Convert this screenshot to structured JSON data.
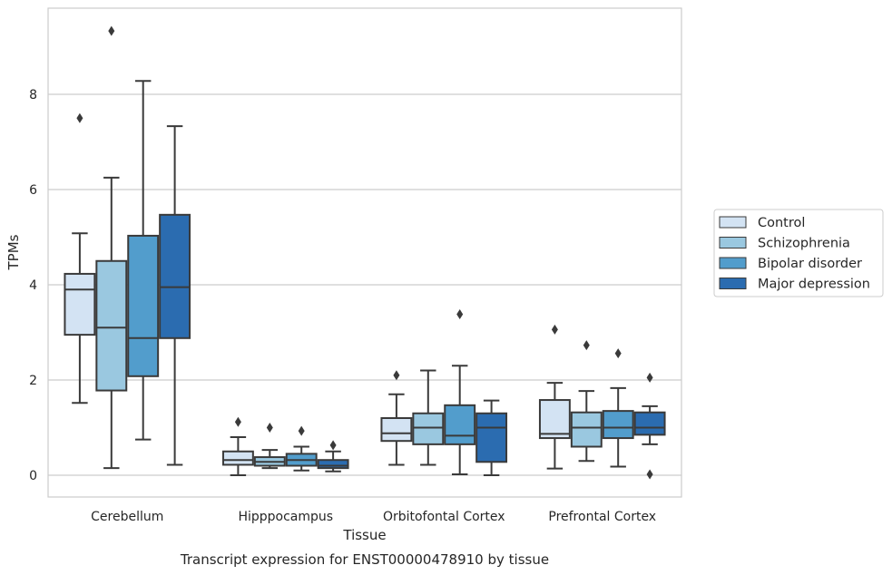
{
  "caption": "Transcript expression for ENST00000478910 by tissue",
  "chart_data": {
    "type": "boxplot",
    "xlabel": "Tissue",
    "ylabel": "TPMs",
    "ylim": [
      -0.45,
      9.7
    ],
    "yticks": [
      0,
      2,
      4,
      6,
      8
    ],
    "grid": "horizontal",
    "legend_position": "right",
    "categories": [
      "Cerebellum",
      "Hipppocampus",
      "Orbitofontal Cortex",
      "Prefrontal Cortex"
    ],
    "series": [
      {
        "name": "Control",
        "color": "#d3e3f3",
        "boxes": [
          {
            "whislo": 1.52,
            "q1": 2.95,
            "med": 3.9,
            "q3": 4.23,
            "whishi": 5.08,
            "fliers": [
              7.5
            ]
          },
          {
            "whislo": 0.0,
            "q1": 0.22,
            "med": 0.32,
            "q3": 0.5,
            "whishi": 0.8,
            "fliers": [
              1.12
            ]
          },
          {
            "whislo": 0.22,
            "q1": 0.72,
            "med": 0.88,
            "q3": 1.2,
            "whishi": 1.7,
            "fliers": [
              2.1
            ]
          },
          {
            "whislo": 0.14,
            "q1": 0.78,
            "med": 0.87,
            "q3": 1.58,
            "whishi": 1.94,
            "fliers": [
              3.06
            ]
          }
        ]
      },
      {
        "name": "Schizophrenia",
        "color": "#9ac8e0",
        "boxes": [
          {
            "whislo": 0.15,
            "q1": 1.78,
            "med": 3.1,
            "q3": 4.5,
            "whishi": 6.25,
            "fliers": [
              9.33
            ]
          },
          {
            "whislo": 0.15,
            "q1": 0.2,
            "med": 0.28,
            "q3": 0.38,
            "whishi": 0.53,
            "fliers": [
              1.0
            ]
          },
          {
            "whislo": 0.22,
            "q1": 0.65,
            "med": 1.0,
            "q3": 1.3,
            "whishi": 2.2,
            "fliers": []
          },
          {
            "whislo": 0.3,
            "q1": 0.6,
            "med": 1.0,
            "q3": 1.32,
            "whishi": 1.77,
            "fliers": [
              2.73
            ]
          }
        ]
      },
      {
        "name": "Bipolar disorder",
        "color": "#529dcc",
        "boxes": [
          {
            "whislo": 0.75,
            "q1": 2.08,
            "med": 2.88,
            "q3": 5.03,
            "whishi": 8.28,
            "fliers": []
          },
          {
            "whislo": 0.1,
            "q1": 0.2,
            "med": 0.32,
            "q3": 0.45,
            "whishi": 0.6,
            "fliers": [
              0.93
            ]
          },
          {
            "whislo": 0.02,
            "q1": 0.65,
            "med": 0.83,
            "q3": 1.47,
            "whishi": 2.3,
            "fliers": [
              3.38
            ]
          },
          {
            "whislo": 0.18,
            "q1": 0.78,
            "med": 1.0,
            "q3": 1.35,
            "whishi": 1.83,
            "fliers": [
              2.56
            ]
          }
        ]
      },
      {
        "name": "Major depression",
        "color": "#2b6cb0",
        "boxes": [
          {
            "whislo": 0.22,
            "q1": 2.88,
            "med": 3.95,
            "q3": 5.47,
            "whishi": 7.33,
            "fliers": []
          },
          {
            "whislo": 0.08,
            "q1": 0.15,
            "med": 0.2,
            "q3": 0.32,
            "whishi": 0.5,
            "fliers": [
              0.63
            ]
          },
          {
            "whislo": 0.0,
            "q1": 0.28,
            "med": 1.0,
            "q3": 1.3,
            "whishi": 1.57,
            "fliers": []
          },
          {
            "whislo": 0.65,
            "q1": 0.85,
            "med": 1.0,
            "q3": 1.32,
            "whishi": 1.45,
            "fliers": [
              2.05,
              0.02
            ]
          }
        ]
      }
    ]
  }
}
